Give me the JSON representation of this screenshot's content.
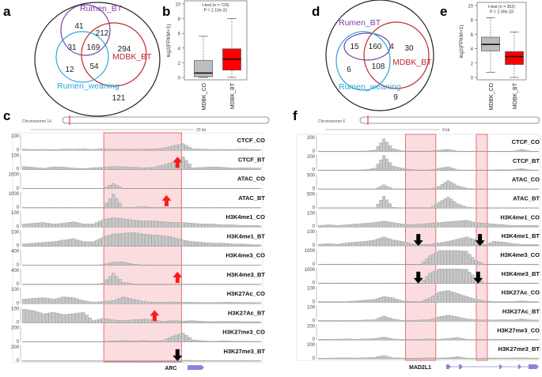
{
  "panels": {
    "a": "a",
    "b": "b",
    "c": "c",
    "d": "d",
    "e": "e",
    "f": "f"
  },
  "chart_data": [
    {
      "panel": "a",
      "type": "venn",
      "sets": [
        "Rumen_BT",
        "MDBK_BT",
        "Rumen_weaning"
      ],
      "set_colors": {
        "Rumen_BT": "#7b3fa8",
        "MDBK_BT": "#c0282d",
        "Rumen_weaning": "#2aa7d8"
      },
      "regions": {
        "Rumen_BT_only": 41,
        "Rumen_BT_MDBK_BT": 212,
        "Rumen_BT_Rumen_weaning": 31,
        "all_three": 169,
        "MDBK_BT_only": 294,
        "Rumen_weaning_only": 12,
        "MDBK_BT_Rumen_weaning": 54,
        "none": 121
      }
    },
    {
      "panel": "b",
      "type": "box",
      "annotation": [
        "t-test (n = 729)",
        "P = 2.10e-31"
      ],
      "ylabel": "log2(FPKM+1)",
      "ylim": [
        0,
        10
      ],
      "yticks": [
        0,
        2,
        4,
        6,
        8,
        10
      ],
      "categories": [
        "MDBK_CO",
        "MDBK_BT"
      ],
      "colors": [
        "#bdbdbd",
        "#ff0000"
      ],
      "boxes": [
        {
          "min": 0,
          "q1": 0.1,
          "median": 0.6,
          "q3": 2.3,
          "max": 5.6
        },
        {
          "min": 0,
          "q1": 1.0,
          "median": 2.5,
          "q3": 3.9,
          "max": 8.0
        }
      ]
    },
    {
      "panel": "d",
      "type": "venn",
      "sets": [
        "Rumen_BT",
        "MDBK_BT",
        "Rumen_weaning"
      ],
      "set_colors": {
        "Rumen_BT": "#7b3fa8",
        "MDBK_BT": "#c0282d",
        "Rumen_weaning": "#2aa7d8"
      },
      "regions": {
        "Rumen_BT_Rumen_weaning": 15,
        "all_three": 160,
        "Rumen_BT_MDBK_BT": 4,
        "MDBK_BT_only": 30,
        "Rumen_weaning_only": 6,
        "MDBK_BT_Rumen_weaning": 108,
        "none": 9
      }
    },
    {
      "panel": "e",
      "type": "box",
      "annotation": [
        "t-test (n = 302)",
        "P = 2.00e-33"
      ],
      "ylabel": "log2(FPKM+1)",
      "ylim": [
        0,
        10
      ],
      "yticks": [
        0,
        2,
        4,
        6,
        8,
        10
      ],
      "categories": [
        "MDBK_CO",
        "MDBK_BT"
      ],
      "colors": [
        "#bdbdbd",
        "#ff0000"
      ],
      "boxes": [
        {
          "min": 0.7,
          "q1": 3.7,
          "median": 4.6,
          "q3": 5.6,
          "max": 8.3
        },
        {
          "min": 0,
          "q1": 1.8,
          "median": 2.9,
          "q3": 3.6,
          "max": 6.3
        }
      ]
    },
    {
      "panel": "c",
      "type": "bar",
      "chromosome": "Chromosome 14",
      "scale": "20 kb",
      "gene": "ARC",
      "highlight_bins": [
        [
          8.2,
          16
        ]
      ],
      "tracks": [
        {
          "name": "CTCF_CO",
          "ymax": 100,
          "values": [
            8,
            6,
            7,
            5,
            9,
            8,
            10,
            6,
            12,
            7,
            8,
            9,
            8,
            10,
            14,
            30,
            45,
            10,
            8,
            6,
            7,
            6,
            8,
            6
          ]
        },
        {
          "name": "CTCF_BT",
          "ymax": 100,
          "values": [
            20,
            15,
            8,
            18,
            16,
            10,
            6,
            12,
            15,
            20,
            18,
            15,
            12,
            14,
            30,
            50,
            85,
            12,
            14,
            18,
            15,
            10,
            12,
            10
          ],
          "arrow": {
            "dir": "up",
            "bin": 15.6
          }
        },
        {
          "name": "ATAC_CO",
          "ymax": 1000,
          "values": [
            5,
            5,
            5,
            5,
            8,
            5,
            5,
            5,
            20,
            350,
            15,
            10,
            8,
            10,
            12,
            15,
            10,
            5,
            5,
            5,
            8,
            5,
            5,
            5
          ]
        },
        {
          "name": "ATAC_BT",
          "ymax": 1000,
          "values": [
            5,
            5,
            5,
            5,
            5,
            5,
            5,
            5,
            30,
            900,
            20,
            30,
            80,
            20,
            15,
            10,
            10,
            5,
            5,
            5,
            5,
            5,
            5,
            5
          ],
          "arrow": {
            "dir": "up",
            "bin": 14.5
          }
        },
        {
          "name": "H3K4me1_CO",
          "ymax": 100,
          "values": [
            20,
            25,
            30,
            20,
            25,
            35,
            20,
            20,
            50,
            60,
            55,
            45,
            40,
            40,
            35,
            30,
            30,
            25,
            20,
            20,
            15,
            15,
            10,
            10
          ]
        },
        {
          "name": "H3K4me1_BT",
          "ymax": 100,
          "values": [
            15,
            20,
            25,
            30,
            40,
            50,
            30,
            30,
            60,
            80,
            85,
            90,
            80,
            75,
            70,
            60,
            40,
            30,
            25,
            20,
            20,
            15,
            15,
            10
          ]
        },
        {
          "name": "H3K4me3_CO",
          "ymax": 400,
          "values": [
            5,
            5,
            5,
            5,
            5,
            5,
            5,
            5,
            20,
            80,
            90,
            30,
            10,
            10,
            8,
            8,
            5,
            5,
            5,
            5,
            5,
            5,
            5,
            5
          ]
        },
        {
          "name": "H3K4me3_BT",
          "ymax": 400,
          "values": [
            5,
            5,
            5,
            5,
            5,
            5,
            5,
            5,
            40,
            300,
            60,
            20,
            10,
            10,
            10,
            10,
            5,
            5,
            5,
            5,
            5,
            5,
            5,
            5
          ],
          "arrow": {
            "dir": "up",
            "bin": 15.6
          }
        },
        {
          "name": "H3K27Ac_CO",
          "ymax": 100,
          "values": [
            30,
            35,
            40,
            30,
            45,
            40,
            20,
            10,
            15,
            20,
            45,
            30,
            15,
            10,
            10,
            12,
            10,
            10,
            8,
            8,
            10,
            10,
            8,
            8
          ]
        },
        {
          "name": "H3K27Ac_BT",
          "ymax": 100,
          "values": [
            90,
            80,
            60,
            70,
            55,
            60,
            70,
            15,
            30,
            20,
            15,
            20,
            25,
            20,
            10,
            15,
            12,
            15,
            10,
            8,
            10,
            10,
            8,
            8
          ],
          "arrow": {
            "dir": "up",
            "bin": 13.3
          }
        },
        {
          "name": "H3K27me3_CO",
          "ymax": 200,
          "values": [
            5,
            5,
            5,
            5,
            5,
            5,
            5,
            5,
            8,
            15,
            20,
            15,
            20,
            15,
            20,
            80,
            120,
            30,
            15,
            10,
            15,
            10,
            10,
            8
          ]
        },
        {
          "name": "H3K27me3_BT",
          "ymax": 200,
          "values": [
            5,
            5,
            5,
            5,
            5,
            5,
            5,
            5,
            5,
            8,
            8,
            8,
            10,
            8,
            10,
            10,
            12,
            10,
            8,
            8,
            8,
            8,
            8,
            8
          ],
          "arrow": {
            "dir": "down",
            "bin": 15.6
          }
        }
      ]
    },
    {
      "panel": "f",
      "type": "bar",
      "chromosome": "Chromosome 6",
      "scale": "9 kb",
      "gene": "MAD2L1",
      "highlight_bins": [
        [
          9.5,
          12.8
        ],
        [
          17.2,
          18.4
        ]
      ],
      "tracks": [
        {
          "name": "CTCF_CO",
          "ymax": 200,
          "values": [
            3,
            3,
            4,
            3,
            5,
            8,
            20,
            170,
            40,
            10,
            5,
            4,
            6,
            20,
            30,
            8,
            5,
            4,
            4,
            5,
            6,
            4,
            30,
            5
          ]
        },
        {
          "name": "CTCF_BT",
          "ymax": 200,
          "values": [
            3,
            3,
            4,
            3,
            5,
            10,
            30,
            200,
            60,
            30,
            10,
            5,
            8,
            30,
            50,
            10,
            5,
            5,
            6,
            8,
            10,
            8,
            25,
            6
          ]
        },
        {
          "name": "ATAC_CO",
          "ymax": 500,
          "values": [
            3,
            3,
            3,
            3,
            5,
            5,
            10,
            150,
            20,
            5,
            5,
            5,
            10,
            100,
            300,
            120,
            40,
            10,
            5,
            5,
            5,
            5,
            20,
            5
          ]
        },
        {
          "name": "ATAC_BT",
          "ymax": 500,
          "values": [
            3,
            3,
            3,
            3,
            5,
            5,
            10,
            400,
            30,
            5,
            5,
            5,
            10,
            200,
            380,
            150,
            40,
            10,
            5,
            5,
            5,
            5,
            15,
            5
          ]
        },
        {
          "name": "H3K4me1_CO",
          "ymax": 100,
          "values": [
            10,
            15,
            10,
            15,
            20,
            25,
            30,
            40,
            30,
            20,
            15,
            20,
            25,
            30,
            35,
            40,
            45,
            30,
            25,
            20,
            15,
            10,
            10,
            10
          ]
        },
        {
          "name": "H3K4me1_BT",
          "ymax": 100,
          "values": [
            10,
            15,
            10,
            20,
            25,
            30,
            40,
            60,
            40,
            30,
            15,
            10,
            10,
            20,
            30,
            45,
            60,
            40,
            10,
            30,
            25,
            15,
            10,
            10
          ],
          "arrows": [
            {
              "dir": "down",
              "bin": 10.9
            },
            {
              "dir": "down",
              "bin": 17.6
            }
          ]
        },
        {
          "name": "H3K4me3_CO",
          "ymax": 1000,
          "values": [
            5,
            5,
            5,
            5,
            5,
            5,
            10,
            30,
            10,
            5,
            5,
            5,
            600,
            950,
            950,
            950,
            900,
            300,
            20,
            10,
            5,
            5,
            5,
            5
          ]
        },
        {
          "name": "H3K4me3_BT",
          "ymax": 1000,
          "values": [
            5,
            5,
            5,
            5,
            5,
            5,
            10,
            30,
            10,
            5,
            5,
            5,
            700,
            980,
            980,
            980,
            950,
            400,
            20,
            10,
            5,
            5,
            5,
            5
          ],
          "arrows": [
            {
              "dir": "down",
              "bin": 10.9
            },
            {
              "dir": "down",
              "bin": 17.4
            }
          ]
        },
        {
          "name": "H3K27Ac_CO",
          "ymax": 100,
          "values": [
            5,
            5,
            5,
            5,
            10,
            15,
            20,
            40,
            30,
            10,
            5,
            5,
            30,
            70,
            80,
            60,
            40,
            20,
            10,
            5,
            5,
            5,
            10,
            5
          ]
        },
        {
          "name": "H3K27Ac_BT",
          "ymax": 100,
          "values": [
            5,
            5,
            5,
            5,
            5,
            8,
            10,
            35,
            15,
            5,
            5,
            8,
            10,
            30,
            40,
            30,
            15,
            10,
            8,
            8,
            10,
            8,
            15,
            8
          ]
        },
        {
          "name": "H3K27me3_CO",
          "ymax": 200,
          "values": [
            10,
            10,
            12,
            15,
            10,
            15,
            20,
            40,
            15,
            10,
            8,
            10,
            15,
            10,
            20,
            35,
            10,
            8,
            10,
            12,
            10,
            10,
            12,
            10
          ]
        },
        {
          "name": "H3K27me3_BT",
          "ymax": 200,
          "values": [
            8,
            10,
            12,
            15,
            10,
            15,
            20,
            45,
            15,
            10,
            8,
            10,
            15,
            10,
            15,
            30,
            10,
            8,
            10,
            12,
            10,
            12,
            15,
            10
          ]
        }
      ]
    }
  ]
}
